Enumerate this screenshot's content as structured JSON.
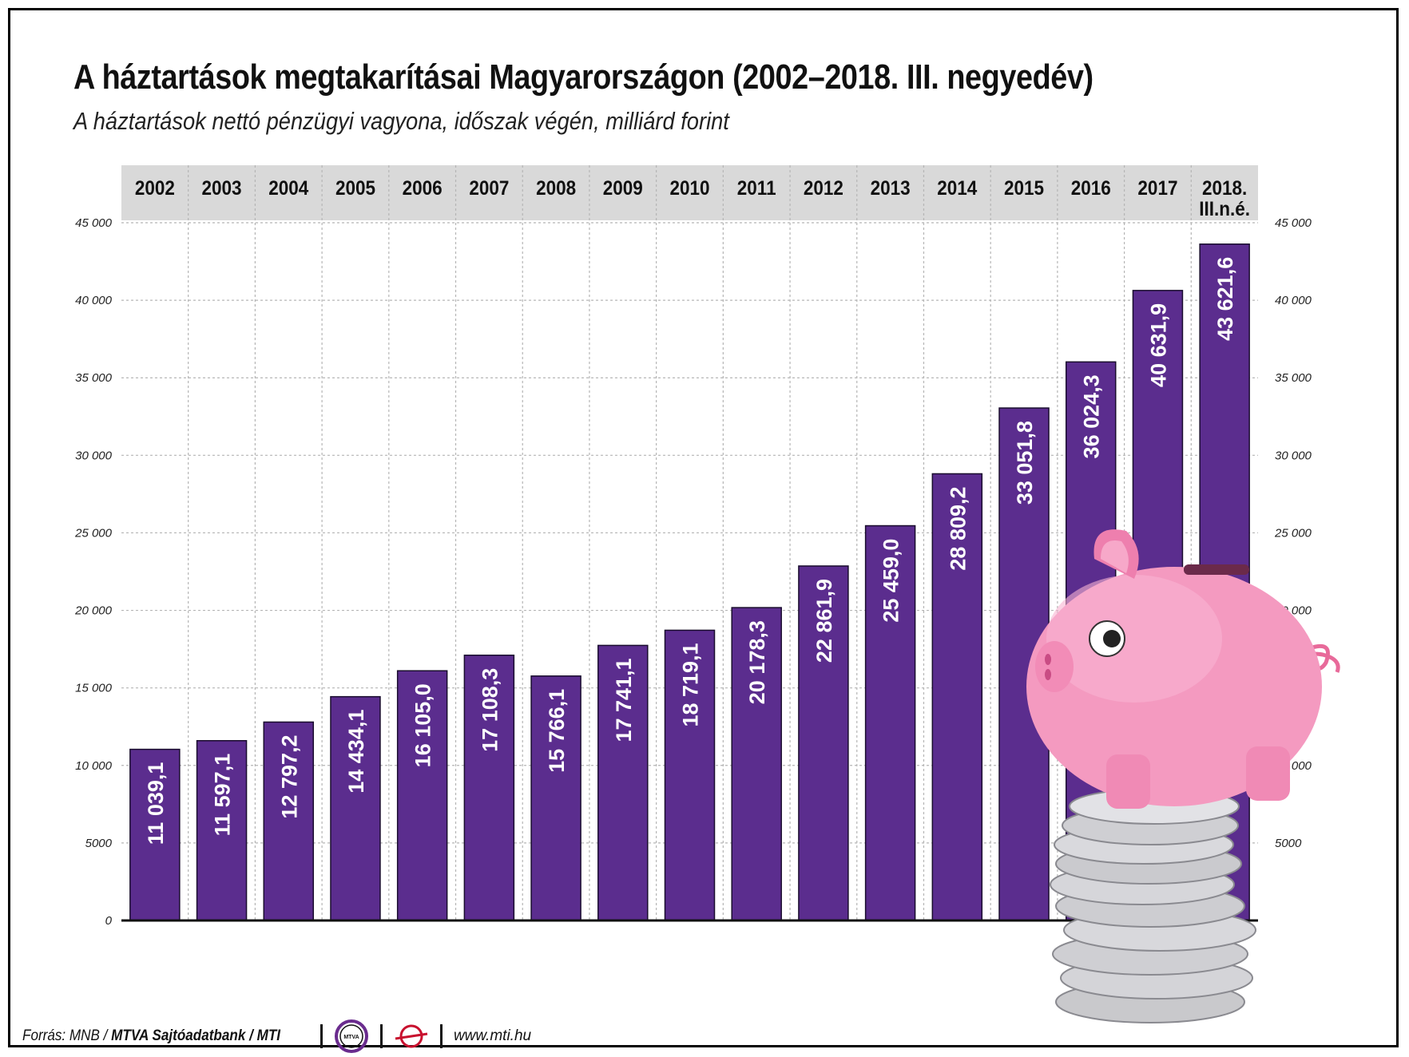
{
  "header": {
    "title": "A háztartások megtakarításai Magyarországon (2002–2018. III. negyedév)",
    "subtitle": "A háztartások nettó pénzügyi vagyona, időszak végén, milliárd forint"
  },
  "chart_data": {
    "type": "bar",
    "title": "A háztartások megtakarításai Magyarországon (2002–2018. III. negyedév)",
    "subtitle": "A háztartások nettó pénzügyi vagyona, időszak végén, milliárd forint",
    "categories": [
      "2002",
      "2003",
      "2004",
      "2005",
      "2006",
      "2007",
      "2008",
      "2009",
      "2010",
      "2011",
      "2012",
      "2013",
      "2014",
      "2015",
      "2016",
      "2017",
      "2018. III.n.é."
    ],
    "category_lines": [
      [
        "2002"
      ],
      [
        "2003"
      ],
      [
        "2004"
      ],
      [
        "2005"
      ],
      [
        "2006"
      ],
      [
        "2007"
      ],
      [
        "2008"
      ],
      [
        "2009"
      ],
      [
        "2010"
      ],
      [
        "2011"
      ],
      [
        "2012"
      ],
      [
        "2013"
      ],
      [
        "2014"
      ],
      [
        "2015"
      ],
      [
        "2016"
      ],
      [
        "2017"
      ],
      [
        "2018.",
        "III.n.é."
      ]
    ],
    "values": [
      11039.1,
      11597.1,
      12797.2,
      14434.1,
      16105.0,
      17108.3,
      15766.1,
      17741.1,
      18719.1,
      20178.3,
      22861.9,
      25459.0,
      28809.2,
      33051.8,
      36024.3,
      40631.9,
      43621.6
    ],
    "value_labels": [
      "11 039,1",
      "11 597,1",
      "12 797,2",
      "14 434,1",
      "16 105,0",
      "17 108,3",
      "15 766,1",
      "17 741,1",
      "18 719,1",
      "20 178,3",
      "22 861,9",
      "25 459,0",
      "28 809,2",
      "33 051,8",
      "36 024,3",
      "40 631,9",
      "43 621,6"
    ],
    "ylim": [
      0,
      45000
    ],
    "yticks": [
      0,
      5000,
      10000,
      15000,
      20000,
      25000,
      30000,
      35000,
      40000,
      45000
    ],
    "ytick_labels": [
      "0",
      "5000",
      "10 000",
      "15 000",
      "20 000",
      "25 000",
      "30 000",
      "35 000",
      "40 000",
      "45 000"
    ],
    "grid": true,
    "bar_color": "#5b2d8e",
    "header_band_color": "#d9d9d9"
  },
  "footer": {
    "source": "Forrás: MNB / ",
    "source_bold": "MTVA Sajtóadatbank",
    "source_tail": " / MTI",
    "logo_mtva": "MTVA",
    "url": "www.mti.hu"
  }
}
